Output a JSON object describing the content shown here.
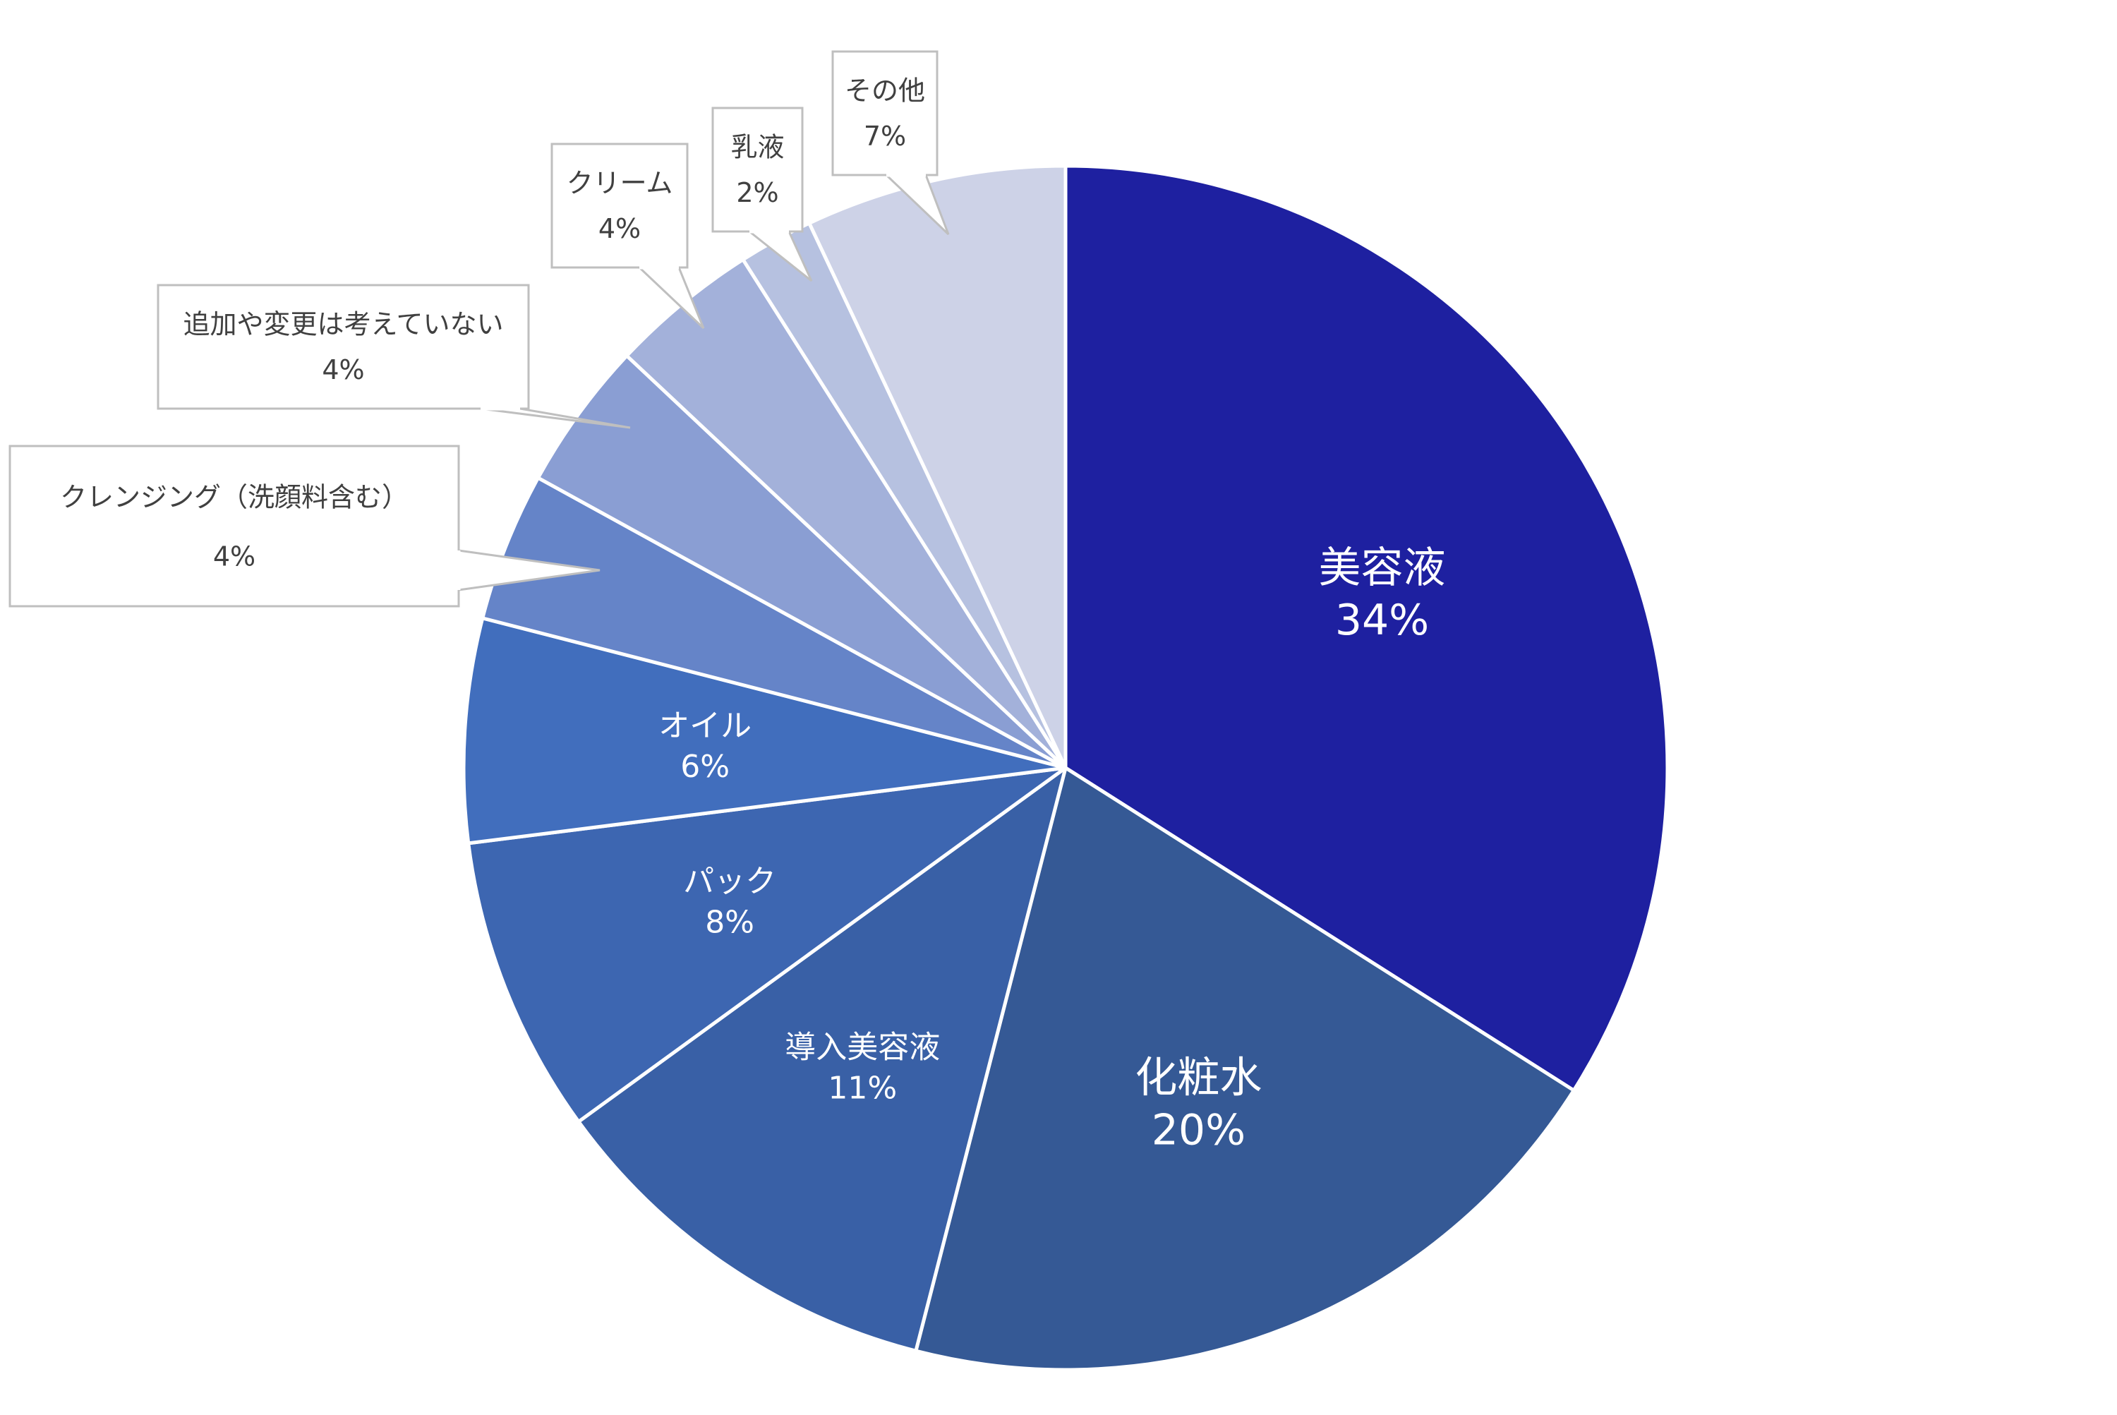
{
  "chart_data": {
    "type": "pie",
    "start_angle_deg": 0,
    "direction": "clockwise",
    "slices": [
      {
        "label": "美容液",
        "value": 34,
        "display": "34%",
        "color": "#1e20a0",
        "label_style": "inside"
      },
      {
        "label": "化粧水",
        "value": 20,
        "display": "20%",
        "color": "#355995",
        "label_style": "inside"
      },
      {
        "label": "導入美容液",
        "value": 11,
        "display": "11%",
        "color": "#3960a6",
        "label_style": "inside"
      },
      {
        "label": "パック",
        "value": 8,
        "display": "8%",
        "color": "#3d66b1",
        "label_style": "inside"
      },
      {
        "label": "オイル",
        "value": 6,
        "display": "6%",
        "color": "#416ebd",
        "label_style": "inside"
      },
      {
        "label": "クレンジング（洗顔料含む）",
        "value": 4,
        "display": "4%",
        "color": "#6584c8",
        "label_style": "callout"
      },
      {
        "label": "追加や変更は考えていない",
        "value": 4,
        "display": "4%",
        "color": "#8a9ed3",
        "label_style": "callout"
      },
      {
        "label": "クリーム",
        "value": 4,
        "display": "4%",
        "color": "#a3b1da",
        "label_style": "callout"
      },
      {
        "label": "乳液",
        "value": 2,
        "display": "2%",
        "color": "#b6c1e0",
        "label_style": "callout"
      },
      {
        "label": "その他",
        "value": 7,
        "display": "7%",
        "color": "#cdd2e7",
        "label_style": "callout"
      }
    ]
  }
}
